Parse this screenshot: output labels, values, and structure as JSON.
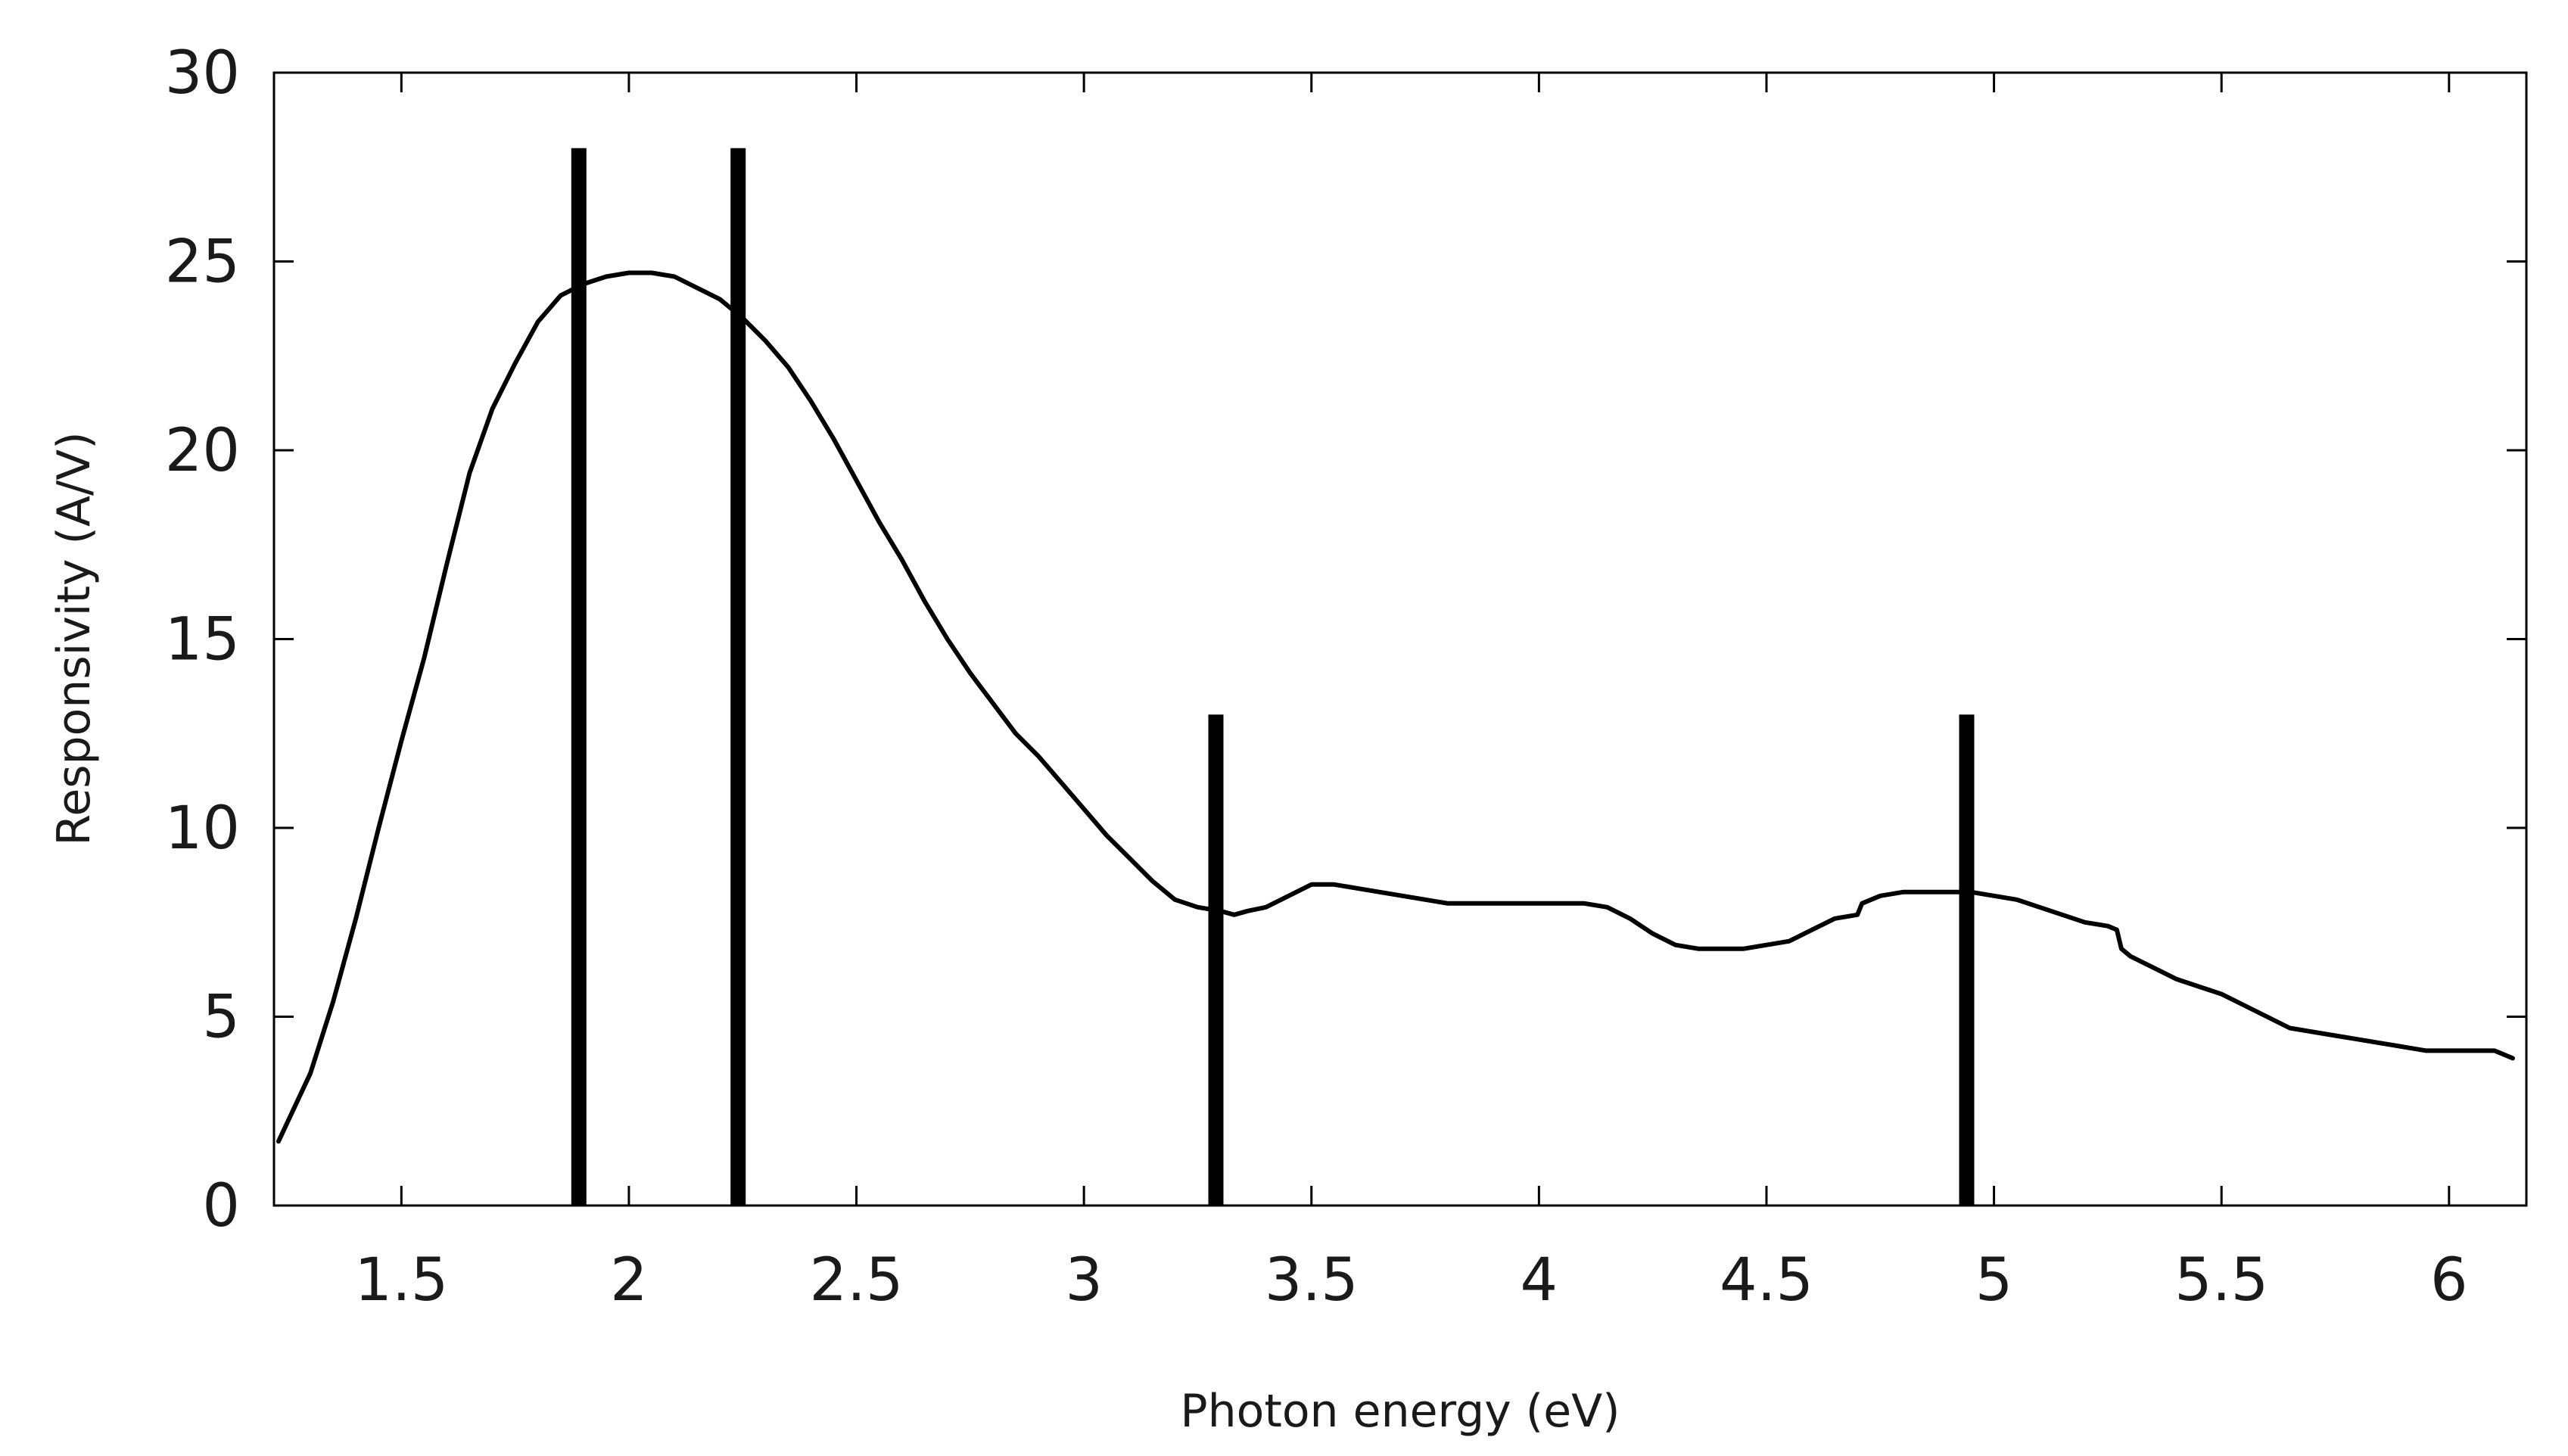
{
  "chart_data": {
    "type": "line",
    "title": "",
    "xlabel": "Photon energy (eV)",
    "ylabel": "Responsivity (A/V)",
    "xlim": [
      1.22,
      6.17
    ],
    "ylim": [
      0,
      30
    ],
    "xticks": [
      1.5,
      2,
      2.5,
      3,
      3.5,
      4,
      4.5,
      5,
      5.5,
      6
    ],
    "xtick_labels": [
      "1.5",
      "2",
      "2.5",
      "3",
      "3.5",
      "4",
      "4.5",
      "5",
      "5.5",
      "6"
    ],
    "yticks": [
      0,
      5,
      10,
      15,
      20,
      25,
      30
    ],
    "ytick_labels": [
      "0",
      "5",
      "10",
      "15",
      "20",
      "25",
      "30"
    ],
    "grid": false,
    "legend": "none",
    "line_color": "#000000",
    "series": [
      {
        "x": [
          1.23,
          1.3,
          1.35,
          1.4,
          1.45,
          1.5,
          1.55,
          1.6,
          1.65,
          1.7,
          1.75,
          1.8,
          1.85,
          1.9,
          1.95,
          2.0,
          2.05,
          2.1,
          2.15,
          2.2,
          2.25,
          2.3,
          2.35,
          2.4,
          2.45,
          2.5,
          2.55,
          2.6,
          2.65,
          2.7,
          2.75,
          2.8,
          2.85,
          2.9,
          2.95,
          3.0,
          3.05,
          3.1,
          3.15,
          3.2,
          3.25,
          3.3,
          3.33,
          3.36,
          3.4,
          3.45,
          3.5,
          3.55,
          3.6,
          3.7,
          3.8,
          3.9,
          4.0,
          4.1,
          4.15,
          4.2,
          4.25,
          4.3,
          4.35,
          4.4,
          4.45,
          4.5,
          4.55,
          4.6,
          4.65,
          4.7,
          4.71,
          4.75,
          4.8,
          4.85,
          4.9,
          4.95,
          5.0,
          5.05,
          5.1,
          5.15,
          5.2,
          5.25,
          5.27,
          5.28,
          5.3,
          5.35,
          5.4,
          5.45,
          5.5,
          5.55,
          5.6,
          5.65,
          5.7,
          5.75,
          5.8,
          5.85,
          5.9,
          5.95,
          6.0,
          6.05,
          6.1,
          6.14
        ],
        "y": [
          1.7,
          3.5,
          5.4,
          7.6,
          10.0,
          12.3,
          14.5,
          17.0,
          19.4,
          21.1,
          22.3,
          23.4,
          24.1,
          24.4,
          24.6,
          24.7,
          24.7,
          24.6,
          24.3,
          24.0,
          23.5,
          22.9,
          22.2,
          21.3,
          20.3,
          19.2,
          18.1,
          17.1,
          16.0,
          15.0,
          14.1,
          13.3,
          12.5,
          11.9,
          11.2,
          10.5,
          9.8,
          9.2,
          8.6,
          8.1,
          7.9,
          7.8,
          7.7,
          7.8,
          7.9,
          8.2,
          8.5,
          8.5,
          8.4,
          8.2,
          8.0,
          8.0,
          8.0,
          8.0,
          7.9,
          7.6,
          7.2,
          6.9,
          6.8,
          6.8,
          6.8,
          6.9,
          7.0,
          7.3,
          7.6,
          7.7,
          8.0,
          8.2,
          8.3,
          8.3,
          8.3,
          8.3,
          8.2,
          8.1,
          7.9,
          7.7,
          7.5,
          7.4,
          7.3,
          6.8,
          6.6,
          6.3,
          6.0,
          5.8,
          5.6,
          5.3,
          5.0,
          4.7,
          4.6,
          4.5,
          4.4,
          4.3,
          4.2,
          4.1,
          4.1,
          4.1,
          4.1,
          3.9
        ]
      }
    ],
    "vertical_markers": [
      {
        "x": 1.89,
        "y_top": 28
      },
      {
        "x": 2.24,
        "y_top": 28
      },
      {
        "x": 3.29,
        "y_top": 13
      },
      {
        "x": 4.94,
        "y_top": 13
      }
    ]
  }
}
